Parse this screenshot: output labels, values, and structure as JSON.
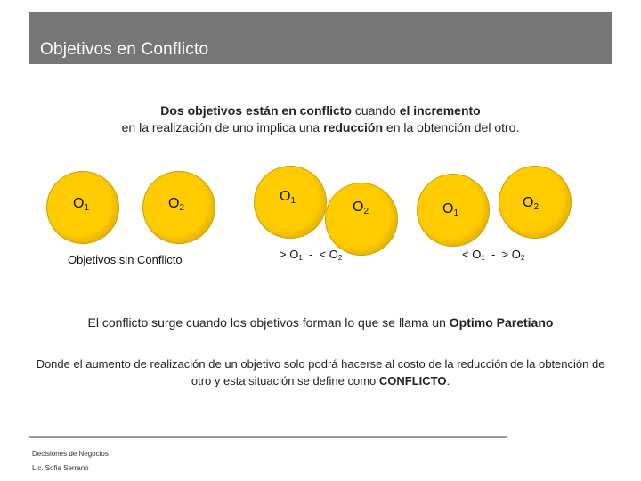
{
  "slide": {
    "title": "Objetivos en Conflicto"
  },
  "intro": {
    "line1_a": "Dos objetivos están en conflicto",
    "line1_b": " cuando ",
    "line1_c": "el incremento",
    "line2_a": "en la realización de uno implica una ",
    "line2_b": "reducción",
    "line2_c": " en la obtención del otro."
  },
  "groups": [
    {
      "o1_letter": "O",
      "o1_sub": "1",
      "o2_letter": "O",
      "o2_sub": "2",
      "caption": "Objetivos  sin Conflicto"
    },
    {
      "o1_letter": "O",
      "o1_sub": "1",
      "o2_letter": "O",
      "o2_sub": "2",
      "caption_a": "> O",
      "caption_sub1": "1",
      "caption_b": "  -  < O",
      "caption_sub2": "2"
    },
    {
      "o1_letter": "O",
      "o1_sub": "1",
      "o2_letter": "O",
      "o2_sub": "2",
      "caption_a": "< O",
      "caption_sub1": "1",
      "caption_b": "  -  > O",
      "caption_sub2": "2"
    }
  ],
  "pareto": {
    "text": "El conflicto surge cuando los objetivos forman lo que se llama un ",
    "term": "Optimo Paretiano"
  },
  "definition": {
    "text": "Donde el aumento de realización de un objetivo solo podrá hacerse al  costo de la reducción de la obtención de otro y esta situación se define como ",
    "term": "CONFLICTO",
    "end": "."
  },
  "footer": {
    "course": "Decisiones de Negocios",
    "author": "Lic. Sofia Serrano"
  },
  "colors": {
    "title_bar": "#777777",
    "circle_fill": "#ffcc00",
    "footer_line": "#9a9a9a"
  }
}
